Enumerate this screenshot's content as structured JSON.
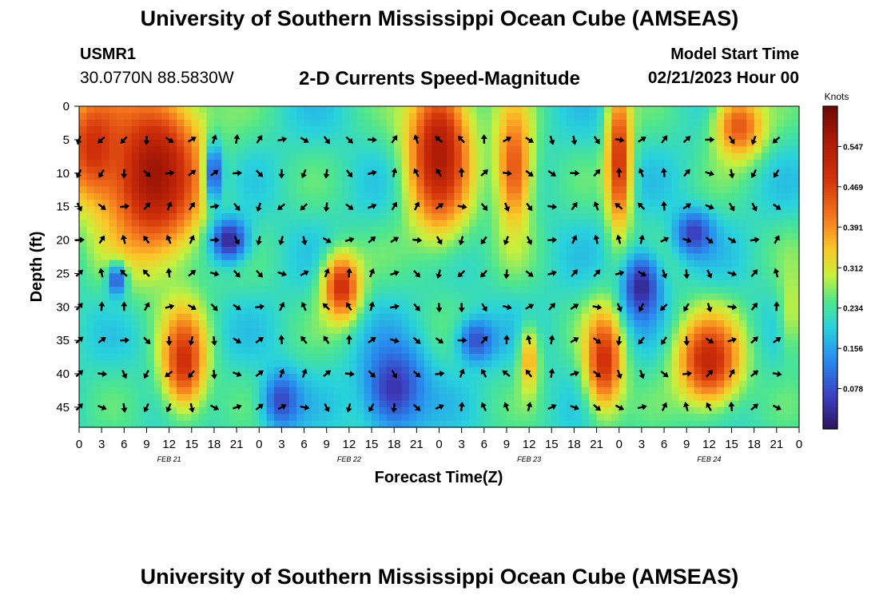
{
  "header": {
    "title": "University of Southern Mississippi Ocean Cube (AMSEAS)",
    "station_id": "USMR1",
    "station_coords": "30.0770N  88.5830W",
    "plot_title": "2-D Currents Speed-Magnitude",
    "start_label": "Model Start Time",
    "start_value": "02/21/2023 Hour 00",
    "footer_title": "University of Southern Mississippi Ocean Cube (AMSEAS)"
  },
  "chart_data": {
    "type": "heatmap",
    "title": "2-D Currents Speed-Magnitude",
    "xlabel": "Forecast Time(Z)",
    "ylabel": "Depth (ft)",
    "colorbar_label": "Knots",
    "colorbar_ticks": [
      "0.078",
      "0.156",
      "0.234",
      "0.312",
      "0.391",
      "0.469",
      "0.547"
    ],
    "colorbar_values": [
      0.078,
      0.156,
      0.234,
      0.312,
      0.391,
      0.469,
      0.547
    ],
    "color_range": [
      0,
      0.625
    ],
    "x_ticks_hours": [
      0,
      3,
      6,
      9,
      12,
      15,
      18,
      21,
      24,
      27,
      30,
      33,
      36,
      39,
      42,
      45,
      48,
      51,
      54,
      57,
      60,
      63,
      66,
      69,
      72,
      75,
      78,
      81,
      84,
      87,
      90,
      93,
      96
    ],
    "x_tick_labels": [
      "0",
      "3",
      "6",
      "9",
      "12",
      "15",
      "18",
      "21",
      "0",
      "3",
      "6",
      "9",
      "12",
      "15",
      "18",
      "21",
      "0",
      "3",
      "6",
      "9",
      "12",
      "15",
      "18",
      "21",
      "0",
      "3",
      "6",
      "9",
      "12",
      "15",
      "18",
      "21",
      "0"
    ],
    "date_labels": [
      {
        "hour": 12,
        "label": "FEB 21"
      },
      {
        "hour": 36,
        "label": "FEB 22"
      },
      {
        "hour": 60,
        "label": "FEB 23"
      },
      {
        "hour": 84,
        "label": "FEB 24"
      }
    ],
    "y_ticks": [
      0,
      5,
      10,
      15,
      20,
      25,
      30,
      35,
      40,
      45
    ],
    "y_tick_labels": [
      "0",
      "5",
      "10",
      "15",
      "20",
      "25",
      "30",
      "35",
      "40",
      "45"
    ],
    "xlim": [
      0,
      96
    ],
    "ylim": [
      0,
      48
    ],
    "arrow_times": [
      0,
      3,
      6,
      9,
      12,
      15,
      18,
      21,
      24,
      27,
      30,
      33,
      36,
      39,
      42,
      45,
      48,
      51,
      54,
      57,
      60,
      63,
      66,
      69,
      72,
      75,
      78,
      81,
      84,
      87,
      90,
      93
    ],
    "arrow_depths": [
      5,
      10,
      15,
      20,
      25,
      30,
      35,
      40,
      45
    ],
    "high_speed_regions": [
      {
        "t_center": 10,
        "d_center": 10,
        "t_halfwidth": 8,
        "d_halfwidth": 15,
        "speed": 0.58
      },
      {
        "t_center": 2,
        "d_center": 6,
        "t_halfwidth": 5,
        "d_halfwidth": 10,
        "speed": 0.5
      },
      {
        "t_center": 48,
        "d_center": 7,
        "t_halfwidth": 5,
        "d_halfwidth": 14,
        "speed": 0.56
      },
      {
        "t_center": 58,
        "d_center": 9,
        "t_halfwidth": 3,
        "d_halfwidth": 12,
        "speed": 0.45
      },
      {
        "t_center": 72,
        "d_center": 8,
        "t_halfwidth": 2,
        "d_halfwidth": 13,
        "speed": 0.5
      },
      {
        "t_center": 88,
        "d_center": 3,
        "t_halfwidth": 4,
        "d_halfwidth": 6,
        "speed": 0.45
      },
      {
        "t_center": 14,
        "d_center": 38,
        "t_halfwidth": 3.5,
        "d_halfwidth": 9,
        "speed": 0.5
      },
      {
        "t_center": 35,
        "d_center": 27,
        "t_halfwidth": 3,
        "d_halfwidth": 6,
        "speed": 0.5
      },
      {
        "t_center": 70,
        "d_center": 38,
        "t_halfwidth": 3,
        "d_halfwidth": 9,
        "speed": 0.5
      },
      {
        "t_center": 84,
        "d_center": 38,
        "t_halfwidth": 5,
        "d_halfwidth": 8,
        "speed": 0.52
      },
      {
        "t_center": 60,
        "d_center": 38,
        "t_halfwidth": 1.6,
        "d_halfwidth": 6,
        "speed": 0.38
      },
      {
        "t_center": 95,
        "d_center": 30,
        "t_halfwidth": 2,
        "d_halfwidth": 10,
        "speed": 0.3
      }
    ],
    "low_speed_regions": [
      {
        "t_center": 20,
        "d_center": 20,
        "t_halfwidth": 3,
        "d_halfwidth": 4,
        "speed": 0.03
      },
      {
        "t_center": 75,
        "d_center": 27,
        "t_halfwidth": 3,
        "d_halfwidth": 6,
        "speed": 0.03
      },
      {
        "t_center": 42,
        "d_center": 42,
        "t_halfwidth": 5,
        "d_halfwidth": 8,
        "speed": 0.05
      },
      {
        "t_center": 82,
        "d_center": 19,
        "t_halfwidth": 3,
        "d_halfwidth": 4,
        "speed": 0.06
      },
      {
        "t_center": 18,
        "d_center": 10,
        "t_halfwidth": 1.5,
        "d_halfwidth": 6,
        "speed": 0.08
      },
      {
        "t_center": 5,
        "d_center": 26,
        "t_halfwidth": 1.5,
        "d_halfwidth": 3,
        "speed": 0.08
      },
      {
        "t_center": 27,
        "d_center": 44,
        "t_halfwidth": 3,
        "d_halfwidth": 5,
        "speed": 0.07
      },
      {
        "t_center": 53,
        "d_center": 35,
        "t_halfwidth": 3,
        "d_halfwidth": 4,
        "speed": 0.08
      }
    ]
  }
}
